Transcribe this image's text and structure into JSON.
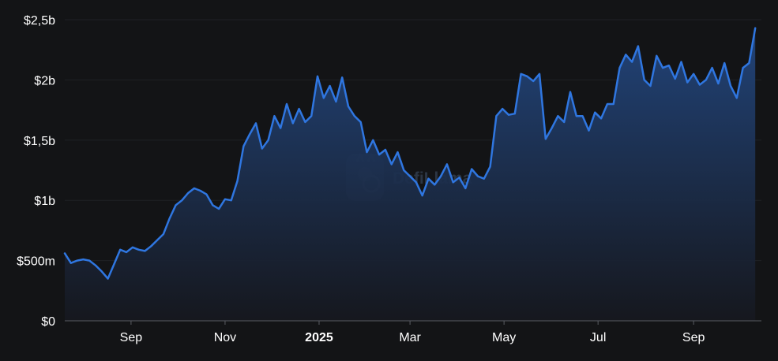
{
  "watermark": "DefiLlama",
  "chart_data": {
    "type": "area",
    "title": "",
    "xlabel": "",
    "ylabel": "",
    "ylim": [
      0,
      2500000000
    ],
    "xlim": [
      "2024-07-20",
      "2025-10-15"
    ],
    "grid": true,
    "legend": "none",
    "colors": {
      "line": "#2f76e0",
      "fill_top": "#22467e",
      "fill_bottom": "#16181f",
      "background": "#131416"
    },
    "y_ticks": [
      {
        "value": 0,
        "label": "$0"
      },
      {
        "value": 500000000,
        "label": "$500m"
      },
      {
        "value": 1000000000,
        "label": "$1b"
      },
      {
        "value": 1500000000,
        "label": "$1,5b"
      },
      {
        "value": 2000000000,
        "label": "$2b"
      },
      {
        "value": 2500000000,
        "label": "$2,5b"
      }
    ],
    "x_ticks": [
      {
        "date": "2024-09-01",
        "label": "Sep",
        "bold": false
      },
      {
        "date": "2024-11-01",
        "label": "Nov",
        "bold": false
      },
      {
        "date": "2025-01-01",
        "label": "2025",
        "bold": true
      },
      {
        "date": "2025-03-01",
        "label": "Mar",
        "bold": false
      },
      {
        "date": "2025-05-01",
        "label": "May",
        "bold": false
      },
      {
        "date": "2025-07-01",
        "label": "Jul",
        "bold": false
      },
      {
        "date": "2025-09-01",
        "label": "Sep",
        "bold": false
      }
    ],
    "series": [
      {
        "name": "",
        "points": [
          [
            "2024-07-20",
            560000000
          ],
          [
            "2024-07-24",
            480000000
          ],
          [
            "2024-07-28",
            500000000
          ],
          [
            "2024-08-01",
            510000000
          ],
          [
            "2024-08-05",
            500000000
          ],
          [
            "2024-08-09",
            460000000
          ],
          [
            "2024-08-13",
            410000000
          ],
          [
            "2024-08-17",
            350000000
          ],
          [
            "2024-08-21",
            470000000
          ],
          [
            "2024-08-25",
            590000000
          ],
          [
            "2024-08-29",
            570000000
          ],
          [
            "2024-09-02",
            610000000
          ],
          [
            "2024-09-06",
            590000000
          ],
          [
            "2024-09-10",
            580000000
          ],
          [
            "2024-09-14",
            620000000
          ],
          [
            "2024-09-18",
            670000000
          ],
          [
            "2024-09-22",
            720000000
          ],
          [
            "2024-09-26",
            850000000
          ],
          [
            "2024-09-30",
            960000000
          ],
          [
            "2024-10-04",
            1000000000
          ],
          [
            "2024-10-08",
            1060000000
          ],
          [
            "2024-10-12",
            1100000000
          ],
          [
            "2024-10-16",
            1080000000
          ],
          [
            "2024-10-20",
            1050000000
          ],
          [
            "2024-10-24",
            960000000
          ],
          [
            "2024-10-28",
            930000000
          ],
          [
            "2024-11-01",
            1010000000
          ],
          [
            "2024-11-05",
            1000000000
          ],
          [
            "2024-11-09",
            1160000000
          ],
          [
            "2024-11-13",
            1450000000
          ],
          [
            "2024-11-17",
            1550000000
          ],
          [
            "2024-11-21",
            1640000000
          ],
          [
            "2024-11-25",
            1430000000
          ],
          [
            "2024-11-29",
            1500000000
          ],
          [
            "2024-12-03",
            1700000000
          ],
          [
            "2024-12-07",
            1600000000
          ],
          [
            "2024-12-11",
            1800000000
          ],
          [
            "2024-12-15",
            1640000000
          ],
          [
            "2024-12-19",
            1760000000
          ],
          [
            "2024-12-23",
            1650000000
          ],
          [
            "2024-12-27",
            1700000000
          ],
          [
            "2024-12-31",
            2030000000
          ],
          [
            "2025-01-04",
            1850000000
          ],
          [
            "2025-01-08",
            1950000000
          ],
          [
            "2025-01-12",
            1820000000
          ],
          [
            "2025-01-16",
            2020000000
          ],
          [
            "2025-01-20",
            1780000000
          ],
          [
            "2025-01-24",
            1700000000
          ],
          [
            "2025-01-28",
            1650000000
          ],
          [
            "2025-02-01",
            1400000000
          ],
          [
            "2025-02-05",
            1500000000
          ],
          [
            "2025-02-09",
            1380000000
          ],
          [
            "2025-02-13",
            1420000000
          ],
          [
            "2025-02-17",
            1300000000
          ],
          [
            "2025-02-21",
            1400000000
          ],
          [
            "2025-02-25",
            1250000000
          ],
          [
            "2025-03-01",
            1200000000
          ],
          [
            "2025-03-05",
            1150000000
          ],
          [
            "2025-03-09",
            1040000000
          ],
          [
            "2025-03-13",
            1180000000
          ],
          [
            "2025-03-17",
            1130000000
          ],
          [
            "2025-03-21",
            1200000000
          ],
          [
            "2025-03-25",
            1300000000
          ],
          [
            "2025-03-29",
            1150000000
          ],
          [
            "2025-04-02",
            1190000000
          ],
          [
            "2025-04-06",
            1100000000
          ],
          [
            "2025-04-10",
            1260000000
          ],
          [
            "2025-04-14",
            1200000000
          ],
          [
            "2025-04-18",
            1180000000
          ],
          [
            "2025-04-22",
            1280000000
          ],
          [
            "2025-04-26",
            1700000000
          ],
          [
            "2025-04-30",
            1760000000
          ],
          [
            "2025-05-04",
            1710000000
          ],
          [
            "2025-05-08",
            1720000000
          ],
          [
            "2025-05-12",
            2050000000
          ],
          [
            "2025-05-16",
            2030000000
          ],
          [
            "2025-05-20",
            1990000000
          ],
          [
            "2025-05-24",
            2050000000
          ],
          [
            "2025-05-28",
            1510000000
          ],
          [
            "2025-06-01",
            1600000000
          ],
          [
            "2025-06-05",
            1700000000
          ],
          [
            "2025-06-09",
            1650000000
          ],
          [
            "2025-06-13",
            1900000000
          ],
          [
            "2025-06-17",
            1700000000
          ],
          [
            "2025-06-21",
            1700000000
          ],
          [
            "2025-06-25",
            1580000000
          ],
          [
            "2025-06-29",
            1730000000
          ],
          [
            "2025-07-03",
            1680000000
          ],
          [
            "2025-07-07",
            1800000000
          ],
          [
            "2025-07-11",
            1800000000
          ],
          [
            "2025-07-15",
            2100000000
          ],
          [
            "2025-07-19",
            2210000000
          ],
          [
            "2025-07-23",
            2150000000
          ],
          [
            "2025-07-27",
            2280000000
          ],
          [
            "2025-07-31",
            2000000000
          ],
          [
            "2025-08-04",
            1950000000
          ],
          [
            "2025-08-08",
            2200000000
          ],
          [
            "2025-08-12",
            2100000000
          ],
          [
            "2025-08-16",
            2120000000
          ],
          [
            "2025-08-20",
            2010000000
          ],
          [
            "2025-08-24",
            2150000000
          ],
          [
            "2025-08-28",
            1980000000
          ],
          [
            "2025-09-01",
            2050000000
          ],
          [
            "2025-09-05",
            1960000000
          ],
          [
            "2025-09-09",
            2000000000
          ],
          [
            "2025-09-13",
            2100000000
          ],
          [
            "2025-09-17",
            1970000000
          ],
          [
            "2025-09-21",
            2140000000
          ],
          [
            "2025-09-25",
            1950000000
          ],
          [
            "2025-09-29",
            1850000000
          ],
          [
            "2025-10-03",
            2100000000
          ],
          [
            "2025-10-07",
            2140000000
          ],
          [
            "2025-10-11",
            2430000000
          ]
        ]
      }
    ]
  }
}
